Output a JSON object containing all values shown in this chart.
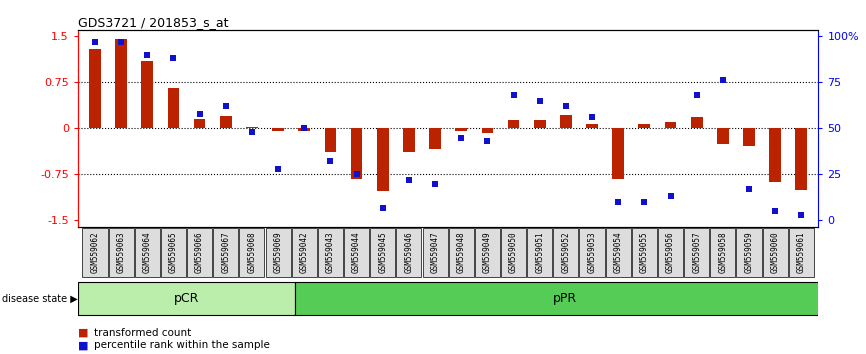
{
  "title": "GDS3721 / 201853_s_at",
  "samples": [
    "GSM559062",
    "GSM559063",
    "GSM559064",
    "GSM559065",
    "GSM559066",
    "GSM559067",
    "GSM559068",
    "GSM559069",
    "GSM559042",
    "GSM559043",
    "GSM559044",
    "GSM559045",
    "GSM559046",
    "GSM559047",
    "GSM559048",
    "GSM559049",
    "GSM559050",
    "GSM559051",
    "GSM559052",
    "GSM559053",
    "GSM559054",
    "GSM559055",
    "GSM559056",
    "GSM559057",
    "GSM559058",
    "GSM559059",
    "GSM559060",
    "GSM559061"
  ],
  "transformed_count": [
    1.3,
    1.45,
    1.1,
    0.65,
    0.15,
    0.2,
    0.02,
    -0.04,
    -0.05,
    -0.38,
    -0.82,
    -1.02,
    -0.38,
    -0.33,
    -0.05,
    -0.08,
    0.14,
    0.13,
    0.22,
    0.07,
    -0.82,
    0.07,
    0.1,
    0.18,
    -0.25,
    -0.28,
    -0.88,
    -1.0
  ],
  "percentile_rank": [
    97,
    97,
    90,
    88,
    58,
    62,
    48,
    28,
    50,
    32,
    25,
    7,
    22,
    20,
    45,
    43,
    68,
    65,
    62,
    56,
    10,
    10,
    13,
    68,
    76,
    17,
    5,
    3
  ],
  "bar_color": "#bb2200",
  "dot_color": "#1111cc",
  "pCR_count": 8,
  "pPR_count": 20,
  "pCR_color": "#bbeeaa",
  "pPR_color": "#55cc55",
  "ylim_left": [
    -1.6,
    1.6
  ],
  "ylim_right_ticks": [
    0,
    25,
    50,
    75,
    100
  ],
  "yticks_left": [
    -1.5,
    -0.75,
    0.0,
    0.75,
    1.5
  ],
  "ytick_labels_left": [
    "-1.5",
    "-0.75",
    "0",
    "0.75",
    "1.5"
  ],
  "ytick_labels_right": [
    "0",
    "25",
    "50",
    "75",
    "100%"
  ],
  "dotted_lines": [
    0.75,
    0.0,
    -0.75
  ],
  "legend_bar_label": "transformed count",
  "legend_dot_label": "percentile rank within the sample",
  "disease_state_label": "disease state",
  "pCR_label": "pCR",
  "pPR_label": "pPR",
  "background_color": "#f0f0f0"
}
